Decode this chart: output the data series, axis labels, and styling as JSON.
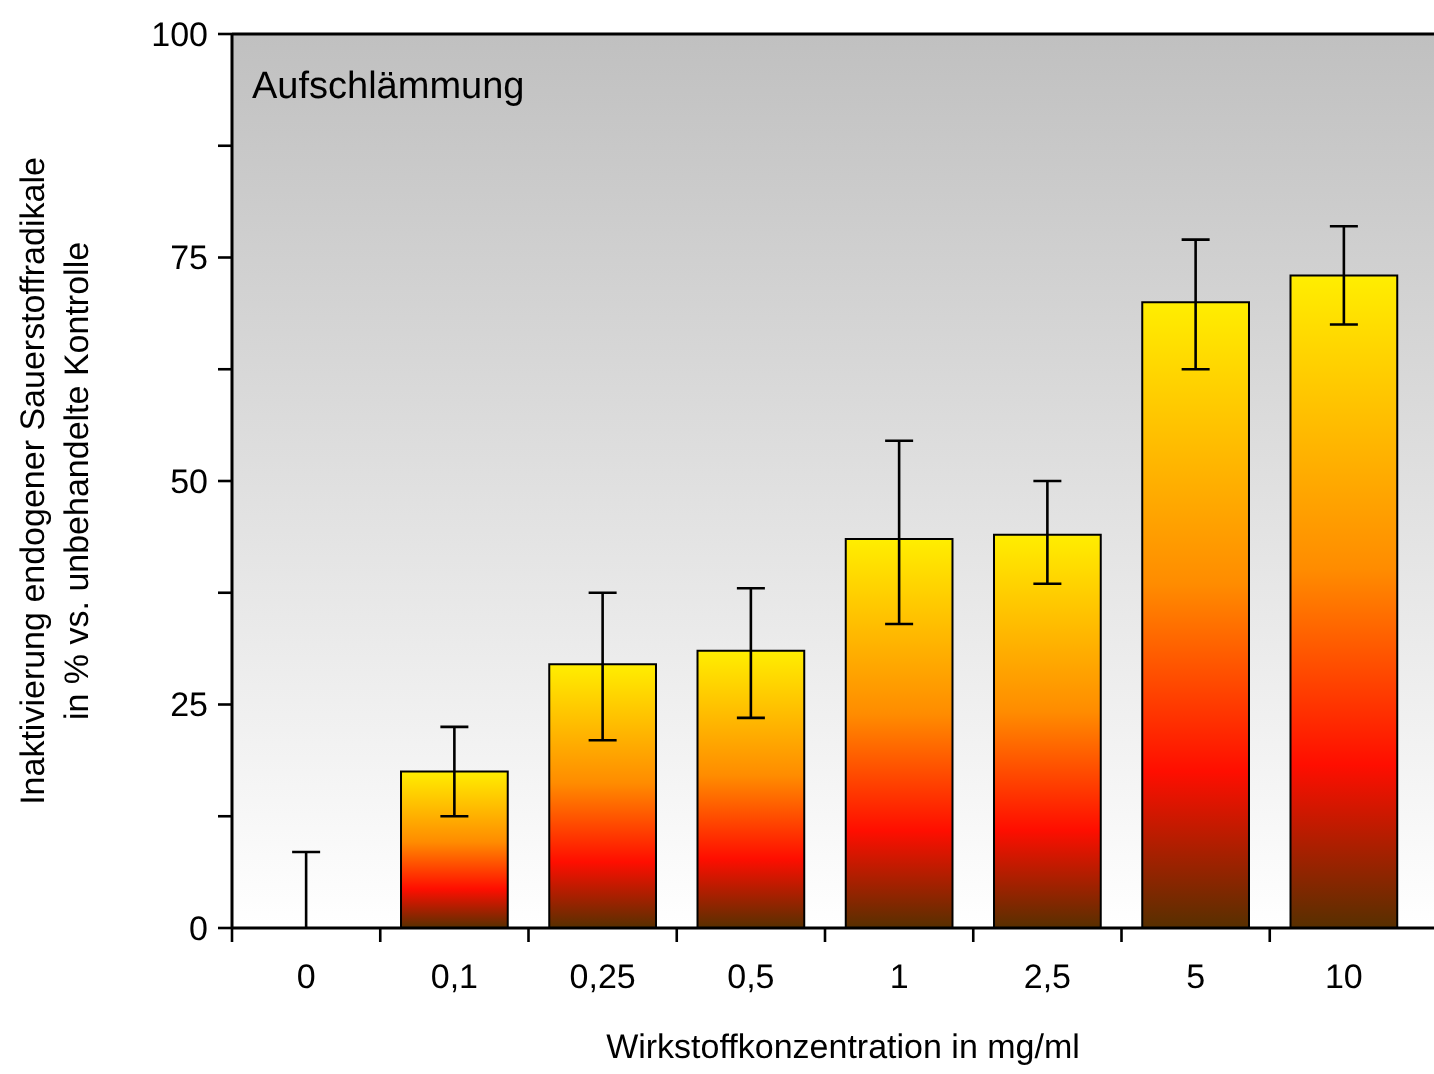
{
  "chart_data": {
    "type": "bar",
    "title": "Aufschlämmung",
    "xlabel": "Wirkstoffkonzentration in mg/ml",
    "ylabel": "Inaktivierung endogener Sauerstoffradikale\nin % vs. unbehandelte Kontrolle",
    "categories": [
      "0",
      "0,1",
      "0,25",
      "0,5",
      "1",
      "2,5",
      "5",
      "10"
    ],
    "values": [
      0,
      17.5,
      29.5,
      31,
      43.5,
      44,
      70,
      73
    ],
    "errors": [
      [
        0,
        8.5
      ],
      [
        12.5,
        22.5
      ],
      [
        21,
        37.5
      ],
      [
        23.5,
        38
      ],
      [
        34,
        54.5
      ],
      [
        38.5,
        50
      ],
      [
        62.5,
        77
      ],
      [
        67.5,
        78.5
      ]
    ],
    "color": "#ff8c00",
    "ylim": [
      0,
      100
    ],
    "yticks": [
      0,
      {
        "value": 12.5,
        "label": null
      },
      25,
      {
        "value": 37.5,
        "label": null
      },
      50,
      {
        "value": 62.5,
        "label": null
      },
      75,
      {
        "value": 87.5,
        "label": null
      },
      100
    ],
    "grid": false
  }
}
